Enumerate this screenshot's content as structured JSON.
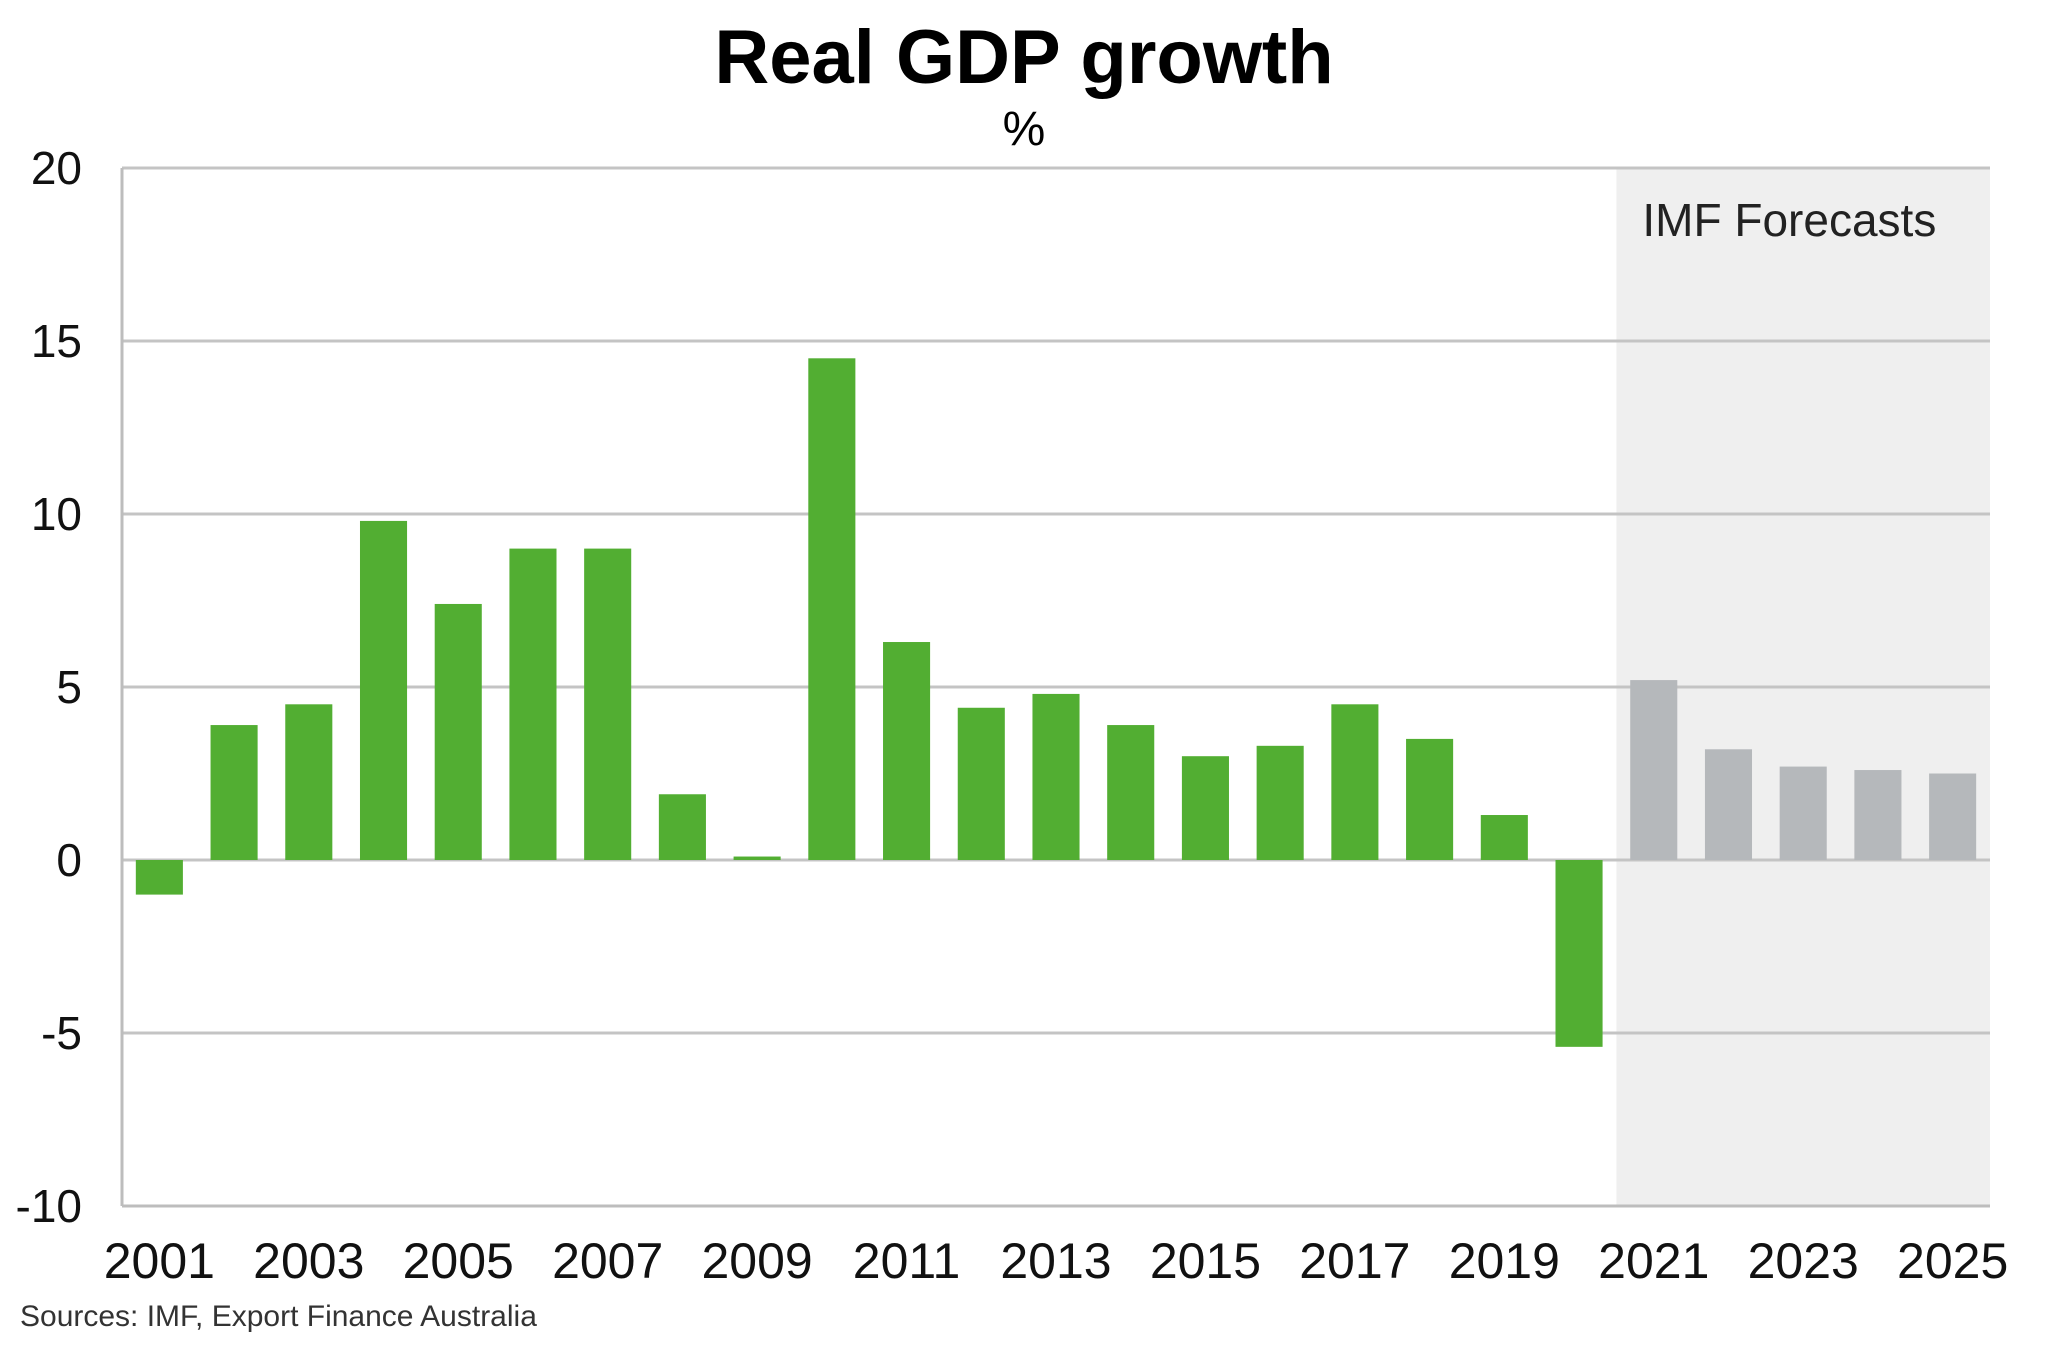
{
  "chart_data": {
    "type": "bar",
    "title": "Real GDP growth",
    "subtitle": "%",
    "source": "Sources: IMF, Export Finance Australia",
    "annotation": "IMF Forecasts",
    "ylim": [
      -10,
      20
    ],
    "yticks": [
      "20",
      "15",
      "10",
      "5",
      "0",
      "-5",
      "-10"
    ],
    "ytick_values": [
      20,
      15,
      10,
      5,
      0,
      -5,
      -10
    ],
    "xtick_labels": [
      "2001",
      "2003",
      "2005",
      "2007",
      "2009",
      "2011",
      "2013",
      "2015",
      "2017",
      "2019",
      "2021",
      "2023",
      "2025"
    ],
    "categories": [
      "2001",
      "2002",
      "2003",
      "2004",
      "2005",
      "2006",
      "2007",
      "2008",
      "2009",
      "2010",
      "2011",
      "2012",
      "2013",
      "2014",
      "2015",
      "2016",
      "2017",
      "2018",
      "2019",
      "2020",
      "2021",
      "2022",
      "2023",
      "2024",
      "2025"
    ],
    "values": [
      -1.0,
      3.9,
      4.5,
      9.8,
      7.4,
      9.0,
      9.0,
      1.9,
      0.1,
      14.5,
      6.3,
      4.4,
      4.8,
      3.9,
      3.0,
      3.3,
      4.5,
      3.5,
      1.3,
      -5.4,
      5.2,
      3.2,
      2.7,
      2.6,
      2.5
    ],
    "forecast_from": "2021",
    "grid": true,
    "colors": {
      "actual": "#52ae32",
      "forecast": "#b5b8bb",
      "forecast_shade": "#efefef",
      "grid": "#c4c4c4"
    }
  }
}
